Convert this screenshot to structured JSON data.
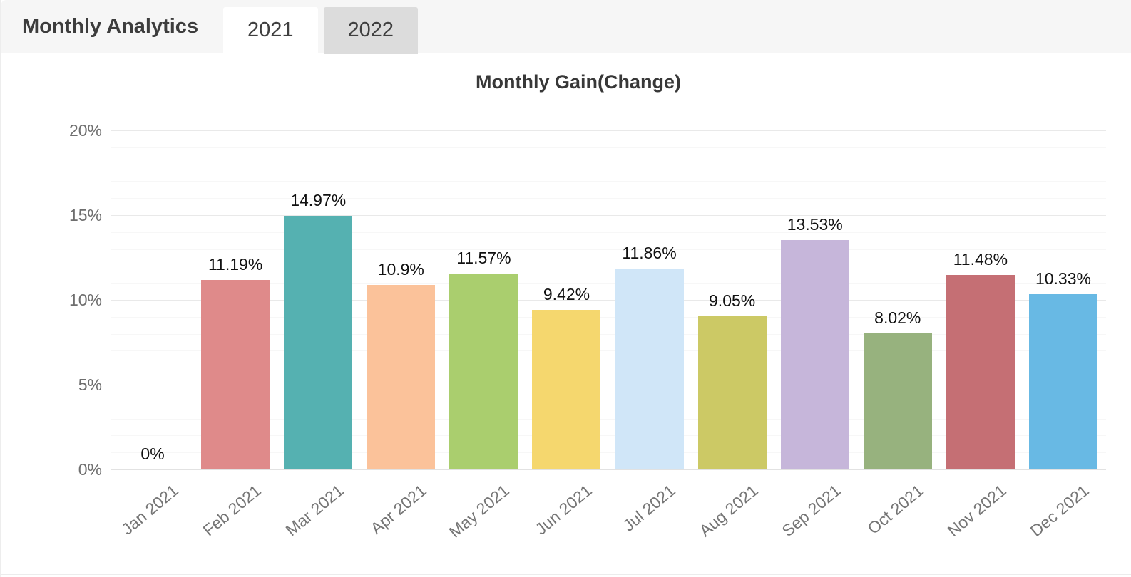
{
  "header": {
    "title": "Monthly Analytics",
    "tabs": [
      {
        "label": "2021",
        "active": true
      },
      {
        "label": "2022",
        "active": false
      }
    ]
  },
  "chart_data": {
    "type": "bar",
    "title": "Monthly Gain(Change)",
    "categories": [
      "Jan 2021",
      "Feb 2021",
      "Mar 2021",
      "Apr 2021",
      "May 2021",
      "Jun 2021",
      "Jul 2021",
      "Aug 2021",
      "Sep 2021",
      "Oct 2021",
      "Nov 2021",
      "Dec 2021"
    ],
    "values": [
      0,
      11.19,
      14.97,
      10.9,
      11.57,
      9.42,
      11.86,
      9.05,
      13.53,
      8.02,
      11.48,
      10.33
    ],
    "value_labels": [
      "0%",
      "11.19%",
      "14.97%",
      "10.9%",
      "11.57%",
      "9.42%",
      "11.86%",
      "9.05%",
      "13.53%",
      "8.02%",
      "11.48%",
      "10.33%"
    ],
    "bar_colors": [
      null,
      "#df8a8a",
      "#55b1b1",
      "#fbc29a",
      "#aace6e",
      "#f5d76e",
      "#d0e6f8",
      "#ccc965",
      "#c6b6da",
      "#97b27e",
      "#c56f74",
      "#68b9e4"
    ],
    "y_ticks": [
      {
        "label": "20%",
        "value": 20
      },
      {
        "label": "15%",
        "value": 15
      },
      {
        "label": "10%",
        "value": 10
      },
      {
        "label": "5%",
        "value": 5
      },
      {
        "label": "0%",
        "value": 0
      }
    ],
    "ylim": [
      0,
      20
    ],
    "xlabel": "",
    "ylabel": "",
    "grid": "horizontal major every 5%, minor every 1%",
    "legend": "none"
  },
  "theme": {
    "header_bg": "#f6f6f6",
    "tab_active_bg": "#ffffff",
    "tab_inactive_bg": "#dcdcdc",
    "title_text": "#3d3d3d",
    "axis_text": "#757575",
    "value_text": "#111111"
  }
}
